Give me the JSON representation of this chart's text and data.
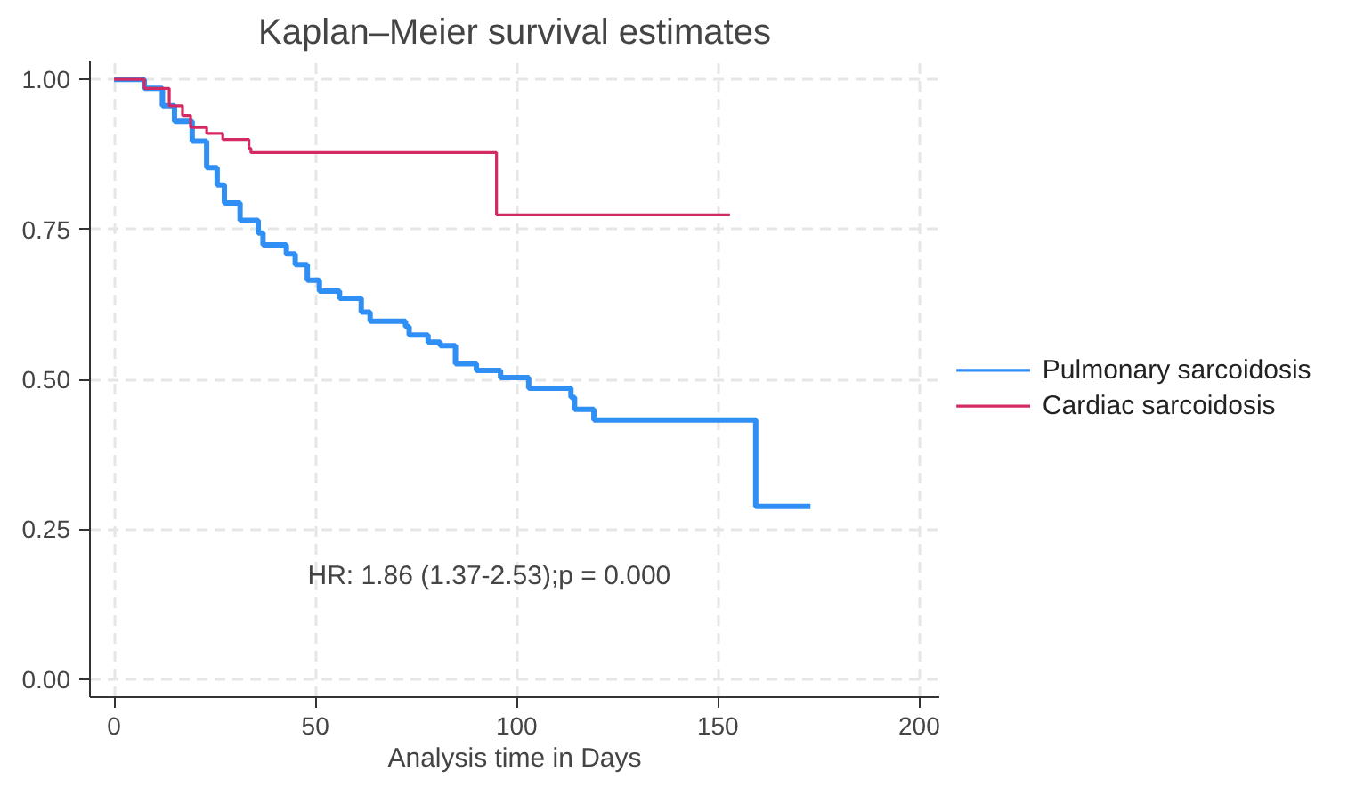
{
  "chart_data": {
    "type": "step",
    "title": "Kaplan–Meier survival estimates",
    "xlabel": "Analysis time in Days",
    "series": [
      {
        "name": "Pulmonary sarcoidosis",
        "color": "#2f8ff5",
        "x": [
          0,
          7.5,
          12,
          15,
          19.4,
          23,
          25.6,
          27.4,
          31.3,
          35.8,
          37,
          42.8,
          45,
          48,
          51,
          56,
          61.4,
          63.6,
          72.4,
          73.3,
          78,
          81,
          84.8,
          90,
          96,
          103,
          113.5,
          114.4,
          119.2,
          159.4,
          173
        ],
        "values": [
          1.0,
          0.985,
          0.956,
          0.93,
          0.897,
          0.853,
          0.824,
          0.794,
          0.765,
          0.744,
          0.724,
          0.709,
          0.691,
          0.665,
          0.647,
          0.635,
          0.612,
          0.597,
          0.588,
          0.574,
          0.562,
          0.556,
          0.526,
          0.515,
          0.503,
          0.485,
          0.47,
          0.45,
          0.432,
          0.288,
          0.288
        ]
      },
      {
        "name": "Cardiac sarcoidosis",
        "color": "#d42a62",
        "x": [
          0,
          7.5,
          13.7,
          17,
          19,
          23,
          27,
          33.5,
          34,
          95,
          153
        ],
        "values": [
          1.0,
          0.985,
          0.956,
          0.94,
          0.92,
          0.91,
          0.9,
          0.885,
          0.878,
          0.774,
          0.774
        ]
      }
    ],
    "xlim": [
      -6,
      205
    ],
    "ylim": [
      -0.03,
      1.03
    ],
    "xticks": [
      0,
      50,
      100,
      150,
      200
    ],
    "yticks": [
      {
        "value": 0,
        "label": "0.00"
      },
      {
        "value": 0.25,
        "label": "0.25"
      },
      {
        "value": 0.5,
        "label": "0.50"
      },
      {
        "value": 0.75,
        "label": "0.75"
      },
      {
        "value": 1,
        "label": "1.00"
      }
    ],
    "annotations": [
      "HR: 1.86 (1.37-2.53);p = 0.000"
    ],
    "grid": true,
    "legend": "right",
    "line_style": "solid",
    "marker": "none"
  }
}
